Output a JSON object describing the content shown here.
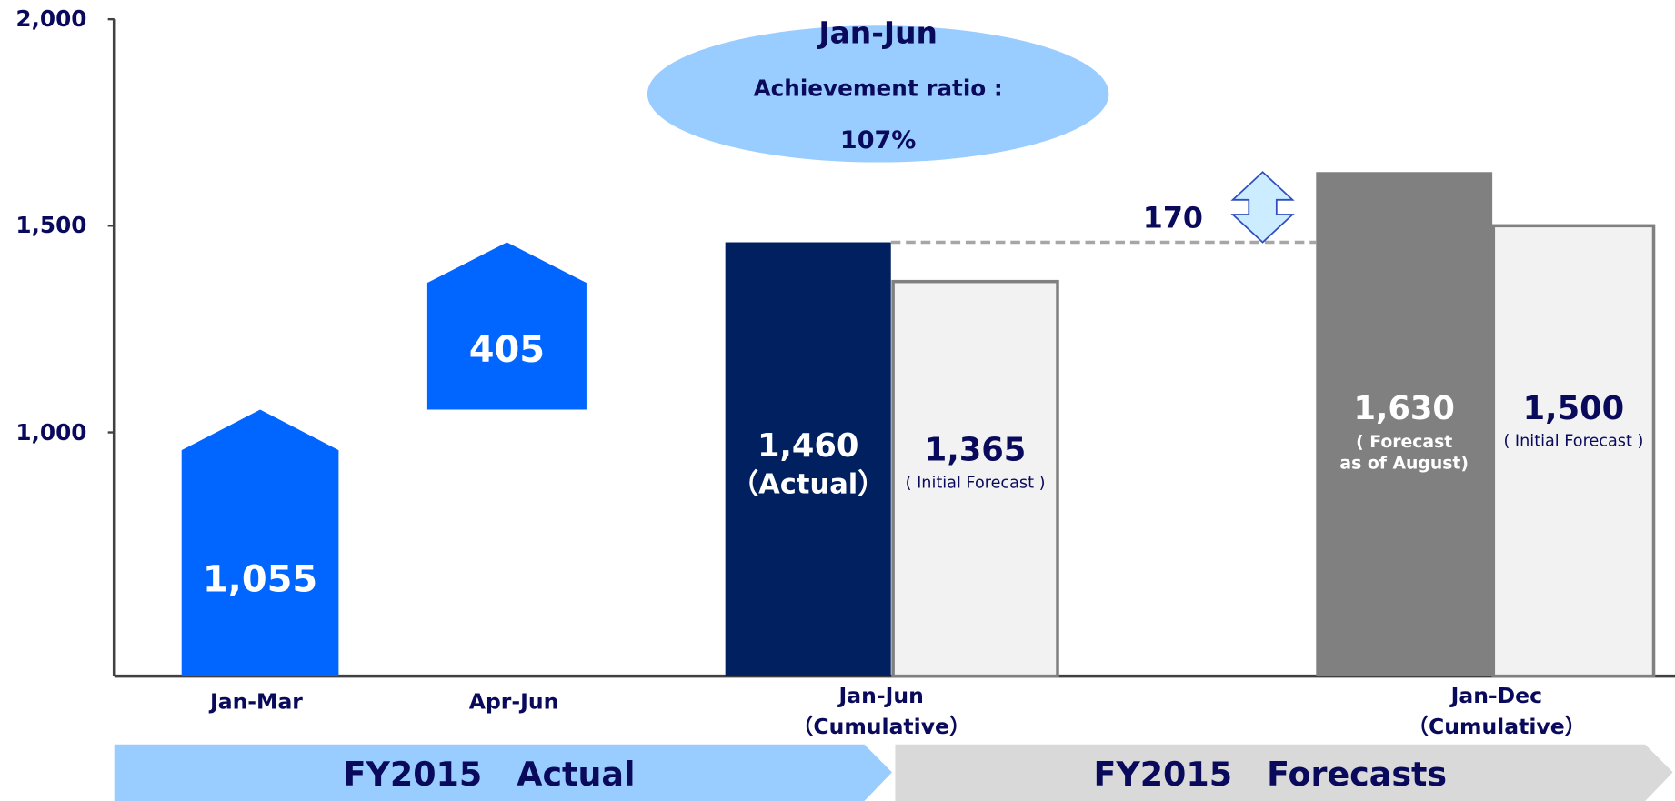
{
  "chart_data": {
    "type": "waterfall",
    "ylim": [
      410,
      2000
    ],
    "yticks": [
      {
        "value": 1000,
        "label": "1,000"
      },
      {
        "value": 1500,
        "label": "1,500"
      },
      {
        "value": 2000,
        "label": "2,000"
      }
    ],
    "categories": [
      "Jan-Mar",
      "Apr-Jun",
      "Jan-Jun\n（Cumulative）",
      "Jan-Dec\n（Cumulative）"
    ],
    "steps": {
      "color": "#0066ff",
      "values": [
        1055,
        405
      ],
      "value_labels": [
        "1,055",
        "405"
      ]
    },
    "groups": [
      {
        "bars": [
          {
            "name": "（Actual）",
            "color": "#002060",
            "value": 1460,
            "value_label": "1,460"
          },
          {
            "name": "( Initial Forecast )",
            "color": "#f2f2f2",
            "value": 1365,
            "value_label": "1,365"
          }
        ]
      },
      {
        "bars": [
          {
            "name": "( Forecast\nas of August)",
            "color": "#808080",
            "value": 1630,
            "value_label": "1,630"
          },
          {
            "name": "( Initial Forecast )",
            "color": "#f2f2f2",
            "value": 1500,
            "value_label": "1,500"
          }
        ]
      }
    ],
    "difference": {
      "value": 170,
      "color": "#ccecff"
    },
    "callout": {
      "lines": [
        "Jan-Jun",
        "Achievement ratio :",
        "107%"
      ],
      "color": "#99ccff"
    },
    "periods": [
      {
        "label": "FY2015   Actual",
        "color": "#99ccff"
      },
      {
        "label": "FY2015   Forecasts",
        "color": "#d9d9d9"
      }
    ]
  }
}
